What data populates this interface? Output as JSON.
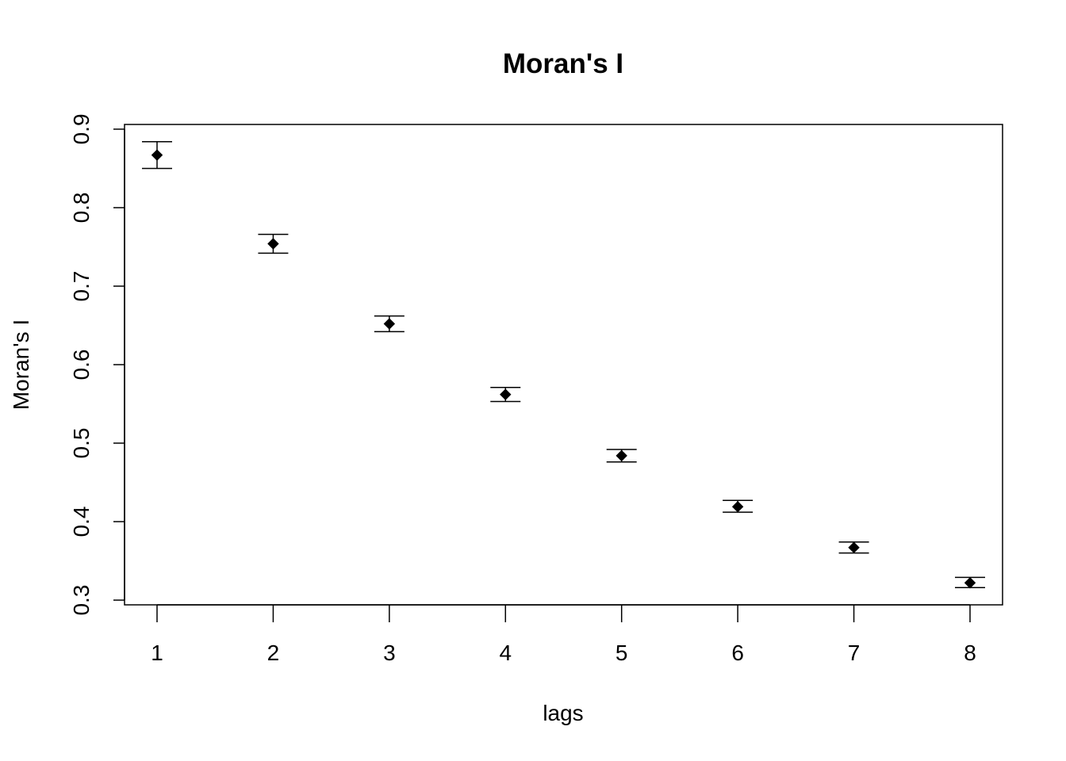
{
  "chart_data": {
    "type": "scatter",
    "title": "Moran's I",
    "xlabel": "lags",
    "ylabel": "Moran's  I",
    "x": [
      1,
      2,
      3,
      4,
      5,
      6,
      7,
      8
    ],
    "y": [
      0.867,
      0.754,
      0.652,
      0.562,
      0.484,
      0.419,
      0.367,
      0.322
    ],
    "err_low": [
      0.85,
      0.742,
      0.642,
      0.553,
      0.476,
      0.412,
      0.36,
      0.316
    ],
    "err_high": [
      0.884,
      0.766,
      0.662,
      0.571,
      0.492,
      0.427,
      0.374,
      0.329
    ],
    "x_ticks": [
      "1",
      "2",
      "3",
      "4",
      "5",
      "6",
      "7",
      "8"
    ],
    "y_ticks": [
      "0.3",
      "0.4",
      "0.5",
      "0.6",
      "0.7",
      "0.8",
      "0.9"
    ],
    "xlim": [
      0.72,
      8.28
    ],
    "ylim": [
      0.294,
      0.906
    ],
    "grid": false,
    "legend": "none",
    "marker": "filled-diamond",
    "color": "#000000"
  }
}
